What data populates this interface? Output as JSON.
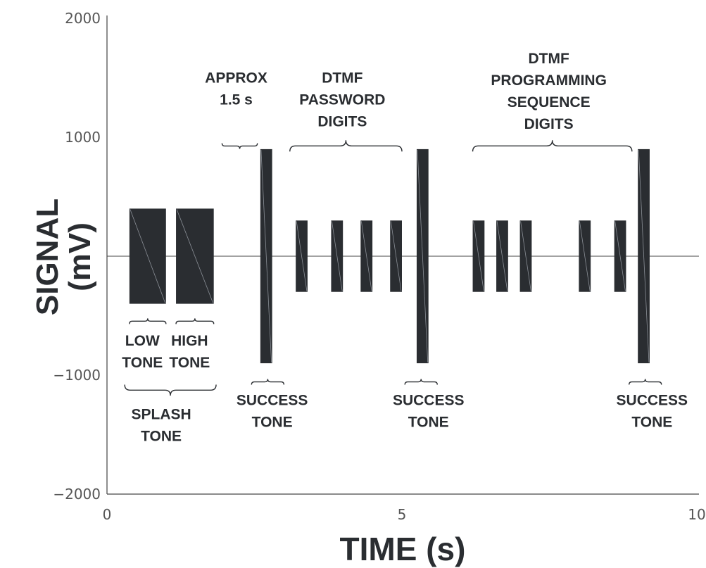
{
  "chart_data": {
    "type": "bar",
    "xlabel": "TIME (s)",
    "ylabel_lines": [
      "SIGNAL",
      "(mV)"
    ],
    "xlim": [
      0,
      10
    ],
    "ylim": [
      -2000,
      2000
    ],
    "x_ticks": [
      0,
      5,
      10
    ],
    "y_ticks": [
      2000,
      1000,
      -1000,
      -2000
    ],
    "y_tick_labels": [
      "2000",
      "1000",
      "−1000",
      "−2000"
    ],
    "grid": false,
    "pulses": [
      {
        "name": "low-tone",
        "x_start": 0.38,
        "x_end": 1.0,
        "low": -400,
        "high": 400
      },
      {
        "name": "high-tone",
        "x_start": 1.17,
        "x_end": 1.81,
        "low": -400,
        "high": 400
      },
      {
        "name": "success-tone-1",
        "x_start": 2.6,
        "x_end": 2.8,
        "low": -900,
        "high": 900
      },
      {
        "name": "password-digit-1",
        "x_start": 3.2,
        "x_end": 3.4,
        "low": -300,
        "high": 300
      },
      {
        "name": "password-digit-2",
        "x_start": 3.8,
        "x_end": 4.0,
        "low": -300,
        "high": 300
      },
      {
        "name": "password-digit-3",
        "x_start": 4.3,
        "x_end": 4.5,
        "low": -300,
        "high": 300
      },
      {
        "name": "password-digit-4",
        "x_start": 4.8,
        "x_end": 5.0,
        "low": -300,
        "high": 300
      },
      {
        "name": "success-tone-2",
        "x_start": 5.25,
        "x_end": 5.45,
        "low": -900,
        "high": 900
      },
      {
        "name": "programming-digit-1",
        "x_start": 6.2,
        "x_end": 6.4,
        "low": -300,
        "high": 300
      },
      {
        "name": "programming-digit-2",
        "x_start": 6.6,
        "x_end": 6.8,
        "low": -300,
        "high": 300
      },
      {
        "name": "programming-digit-3",
        "x_start": 7.0,
        "x_end": 7.2,
        "low": -300,
        "high": 300
      },
      {
        "name": "programming-digit-4",
        "x_start": 8.0,
        "x_end": 8.2,
        "low": -300,
        "high": 300
      },
      {
        "name": "programming-digit-5",
        "x_start": 8.6,
        "x_end": 8.8,
        "low": -300,
        "high": 300
      },
      {
        "name": "success-tone-3",
        "x_start": 9.0,
        "x_end": 9.2,
        "low": -900,
        "high": 900
      }
    ],
    "annotations": [
      {
        "name": "low-tone-label",
        "lines": [
          "LOW",
          "TONE"
        ],
        "brace": "up",
        "brace_x": [
          0.38,
          1.0
        ],
        "brace_y": -570,
        "text_x": 0.6,
        "text_y": -750
      },
      {
        "name": "high-tone-label",
        "lines": [
          "HIGH",
          "TONE"
        ],
        "brace": "up",
        "brace_x": [
          1.17,
          1.81
        ],
        "brace_y": -570,
        "text_x": 1.4,
        "text_y": -750
      },
      {
        "name": "splash-tone-label",
        "lines": [
          "SPLASH",
          "TONE"
        ],
        "brace": "down",
        "brace_x": [
          0.3,
          1.85
        ],
        "brace_y": -1080,
        "text_x": 0.92,
        "text_y": -1370
      },
      {
        "name": "approx-label",
        "lines": [
          "APPROX",
          "1.5 s"
        ],
        "brace": "down",
        "brace_x": [
          1.95,
          2.55
        ],
        "brace_y": 950,
        "text_x": 2.19,
        "text_y": 1460
      },
      {
        "name": "success-tone-1-label",
        "lines": [
          "SUCCESS",
          "TONE"
        ],
        "brace": "up",
        "brace_x": [
          2.45,
          3.0
        ],
        "brace_y": -1080,
        "text_x": 2.8,
        "text_y": -1250
      },
      {
        "name": "password-digits-label",
        "lines": [
          "DTMF",
          "PASSWORD",
          "DIGITS"
        ],
        "brace": "up",
        "brace_x": [
          3.1,
          5.0
        ],
        "brace_y": 880,
        "text_x": 3.99,
        "text_y": 1460
      },
      {
        "name": "success-tone-2-label",
        "lines": [
          "SUCCESS",
          "TONE"
        ],
        "brace": "up",
        "brace_x": [
          5.05,
          5.6
        ],
        "brace_y": -1080,
        "text_x": 5.45,
        "text_y": -1250
      },
      {
        "name": "programming-digits-label",
        "lines": [
          "DTMF",
          "PROGRAMMING",
          "SEQUENCE",
          "DIGITS"
        ],
        "brace": "up",
        "brace_x": [
          6.2,
          8.9
        ],
        "brace_y": 880,
        "text_x": 7.49,
        "text_y": 1620
      },
      {
        "name": "success-tone-3-label",
        "lines": [
          "SUCCESS",
          "TONE"
        ],
        "brace": "up",
        "brace_x": [
          8.85,
          9.4
        ],
        "brace_y": -1080,
        "text_x": 9.24,
        "text_y": -1250
      }
    ]
  }
}
